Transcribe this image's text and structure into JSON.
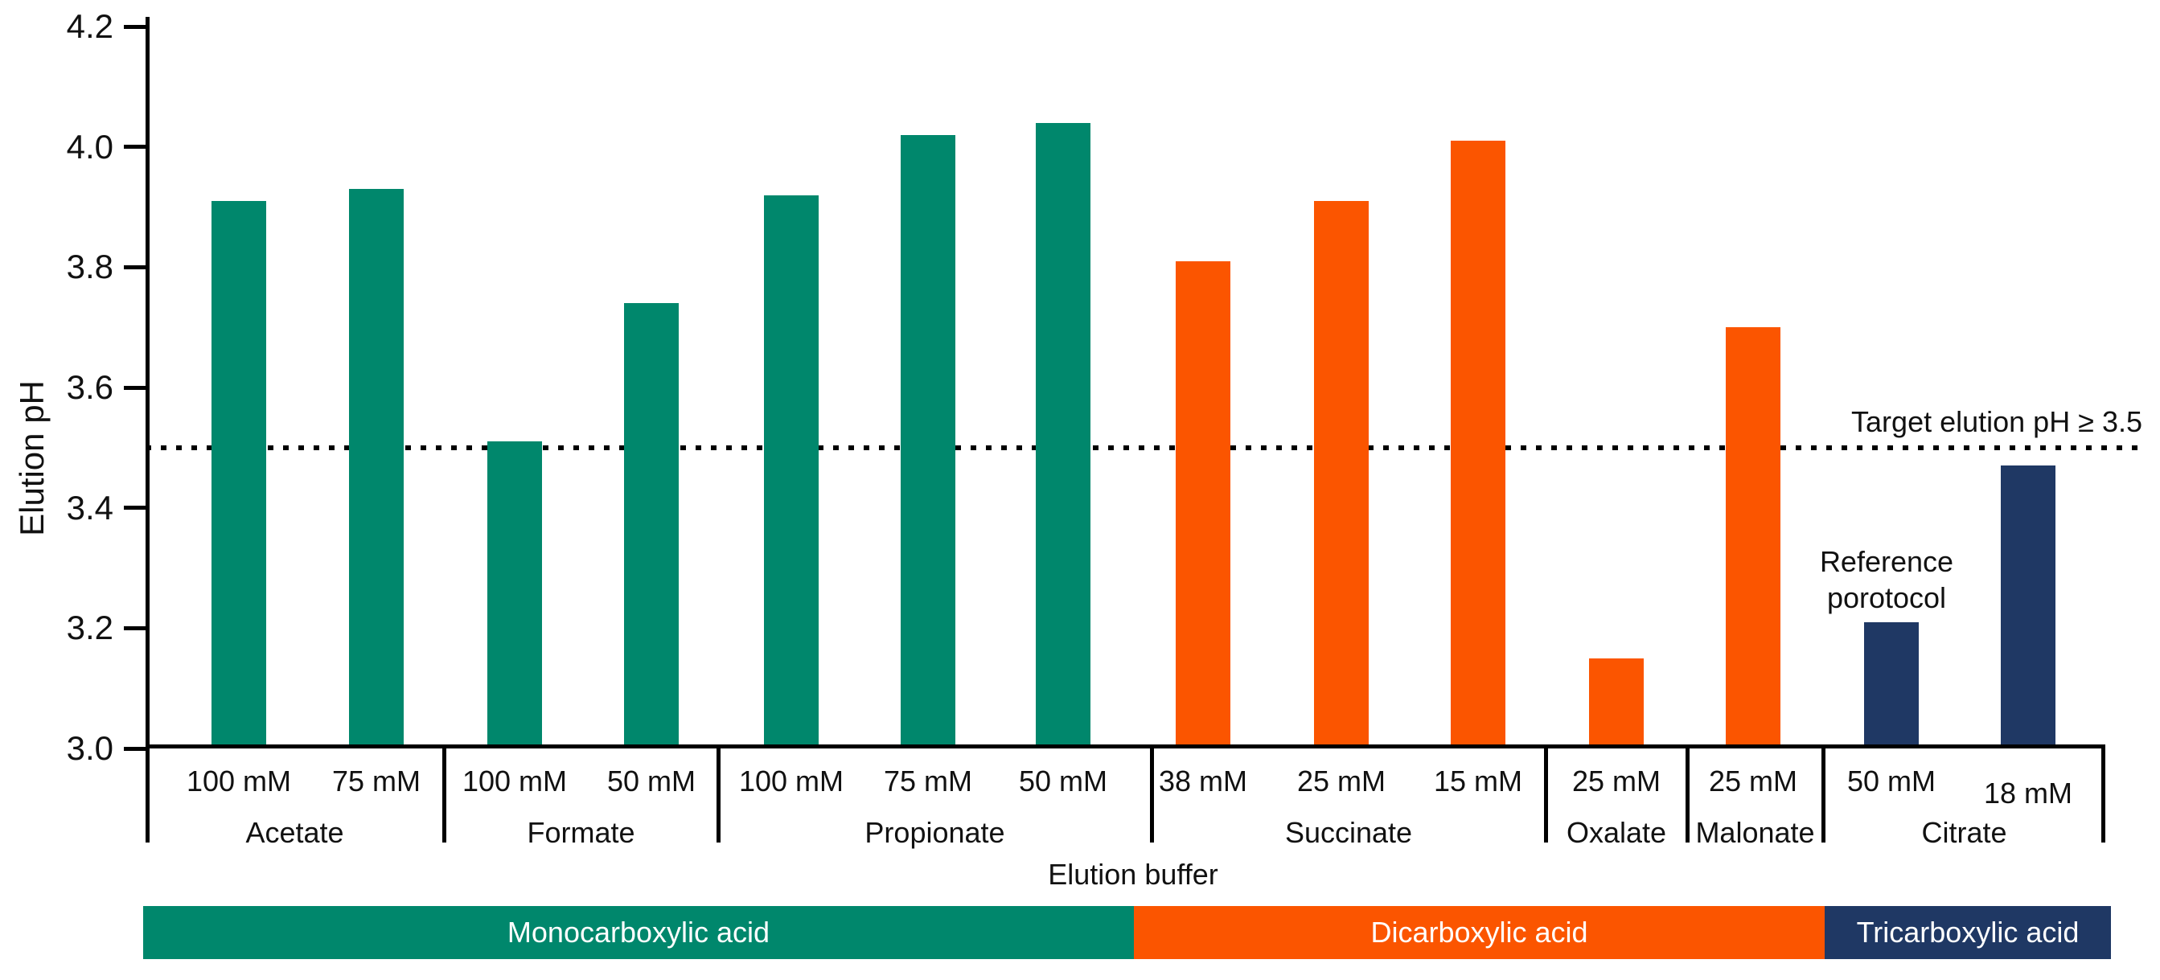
{
  "chart_data": {
    "type": "bar",
    "title": "",
    "ylabel": "Elution pH",
    "xlabel": "Elution buffer",
    "ylim": [
      3.0,
      4.2
    ],
    "yticks": [
      3.0,
      3.2,
      3.4,
      3.6,
      3.8,
      4.0,
      4.2
    ],
    "grid": false,
    "legend_position": "bottom",
    "target_line": {
      "value": 3.5,
      "label": "Target elution pH ≥ 3.5"
    },
    "annotation": {
      "text": "Reference porotocol",
      "lines": [
        "Reference",
        "porotocol"
      ],
      "above_bar": "Citrate 50 mM"
    },
    "groups": [
      {
        "name": "Acetate",
        "acid_type": "mono",
        "bars": [
          {
            "label": "100 mM",
            "value": 3.91
          },
          {
            "label": "75 mM",
            "value": 3.93
          }
        ]
      },
      {
        "name": "Formate",
        "acid_type": "mono",
        "bars": [
          {
            "label": "100 mM",
            "value": 3.51
          },
          {
            "label": "50 mM",
            "value": 3.74
          }
        ]
      },
      {
        "name": "Propionate",
        "acid_type": "mono",
        "bars": [
          {
            "label": "100 mM",
            "value": 3.92
          },
          {
            "label": "75 mM",
            "value": 4.02
          },
          {
            "label": "50 mM",
            "value": 4.04
          }
        ]
      },
      {
        "name": "Succinate",
        "acid_type": "di",
        "bars": [
          {
            "label": "38 mM",
            "value": 3.81
          },
          {
            "label": "25 mM",
            "value": 3.91
          },
          {
            "label": "15 mM",
            "value": 4.01
          }
        ]
      },
      {
        "name": "Oxalate",
        "acid_type": "di",
        "bars": [
          {
            "label": "25 mM",
            "value": 3.15
          }
        ]
      },
      {
        "name": "Malonate",
        "acid_type": "di",
        "bars": [
          {
            "label": "25 mM",
            "value": 3.7
          }
        ]
      },
      {
        "name": "Citrate",
        "acid_type": "tri",
        "bars": [
          {
            "label": "50 mM",
            "value": 3.21
          },
          {
            "label": "18 mM",
            "value": 3.47
          }
        ]
      }
    ],
    "colors": {
      "mono": "#00876C",
      "di": "#FB5500",
      "tri": "#1F3864",
      "axis": "#000000",
      "text": "#111111"
    },
    "legend": [
      {
        "label": "Monocarboxylic acid",
        "color": "#00876C"
      },
      {
        "label": "Dicarboxylic acid",
        "color": "#FB5500"
      },
      {
        "label": "Tricarboxylic acid",
        "color": "#1F3864"
      }
    ]
  }
}
